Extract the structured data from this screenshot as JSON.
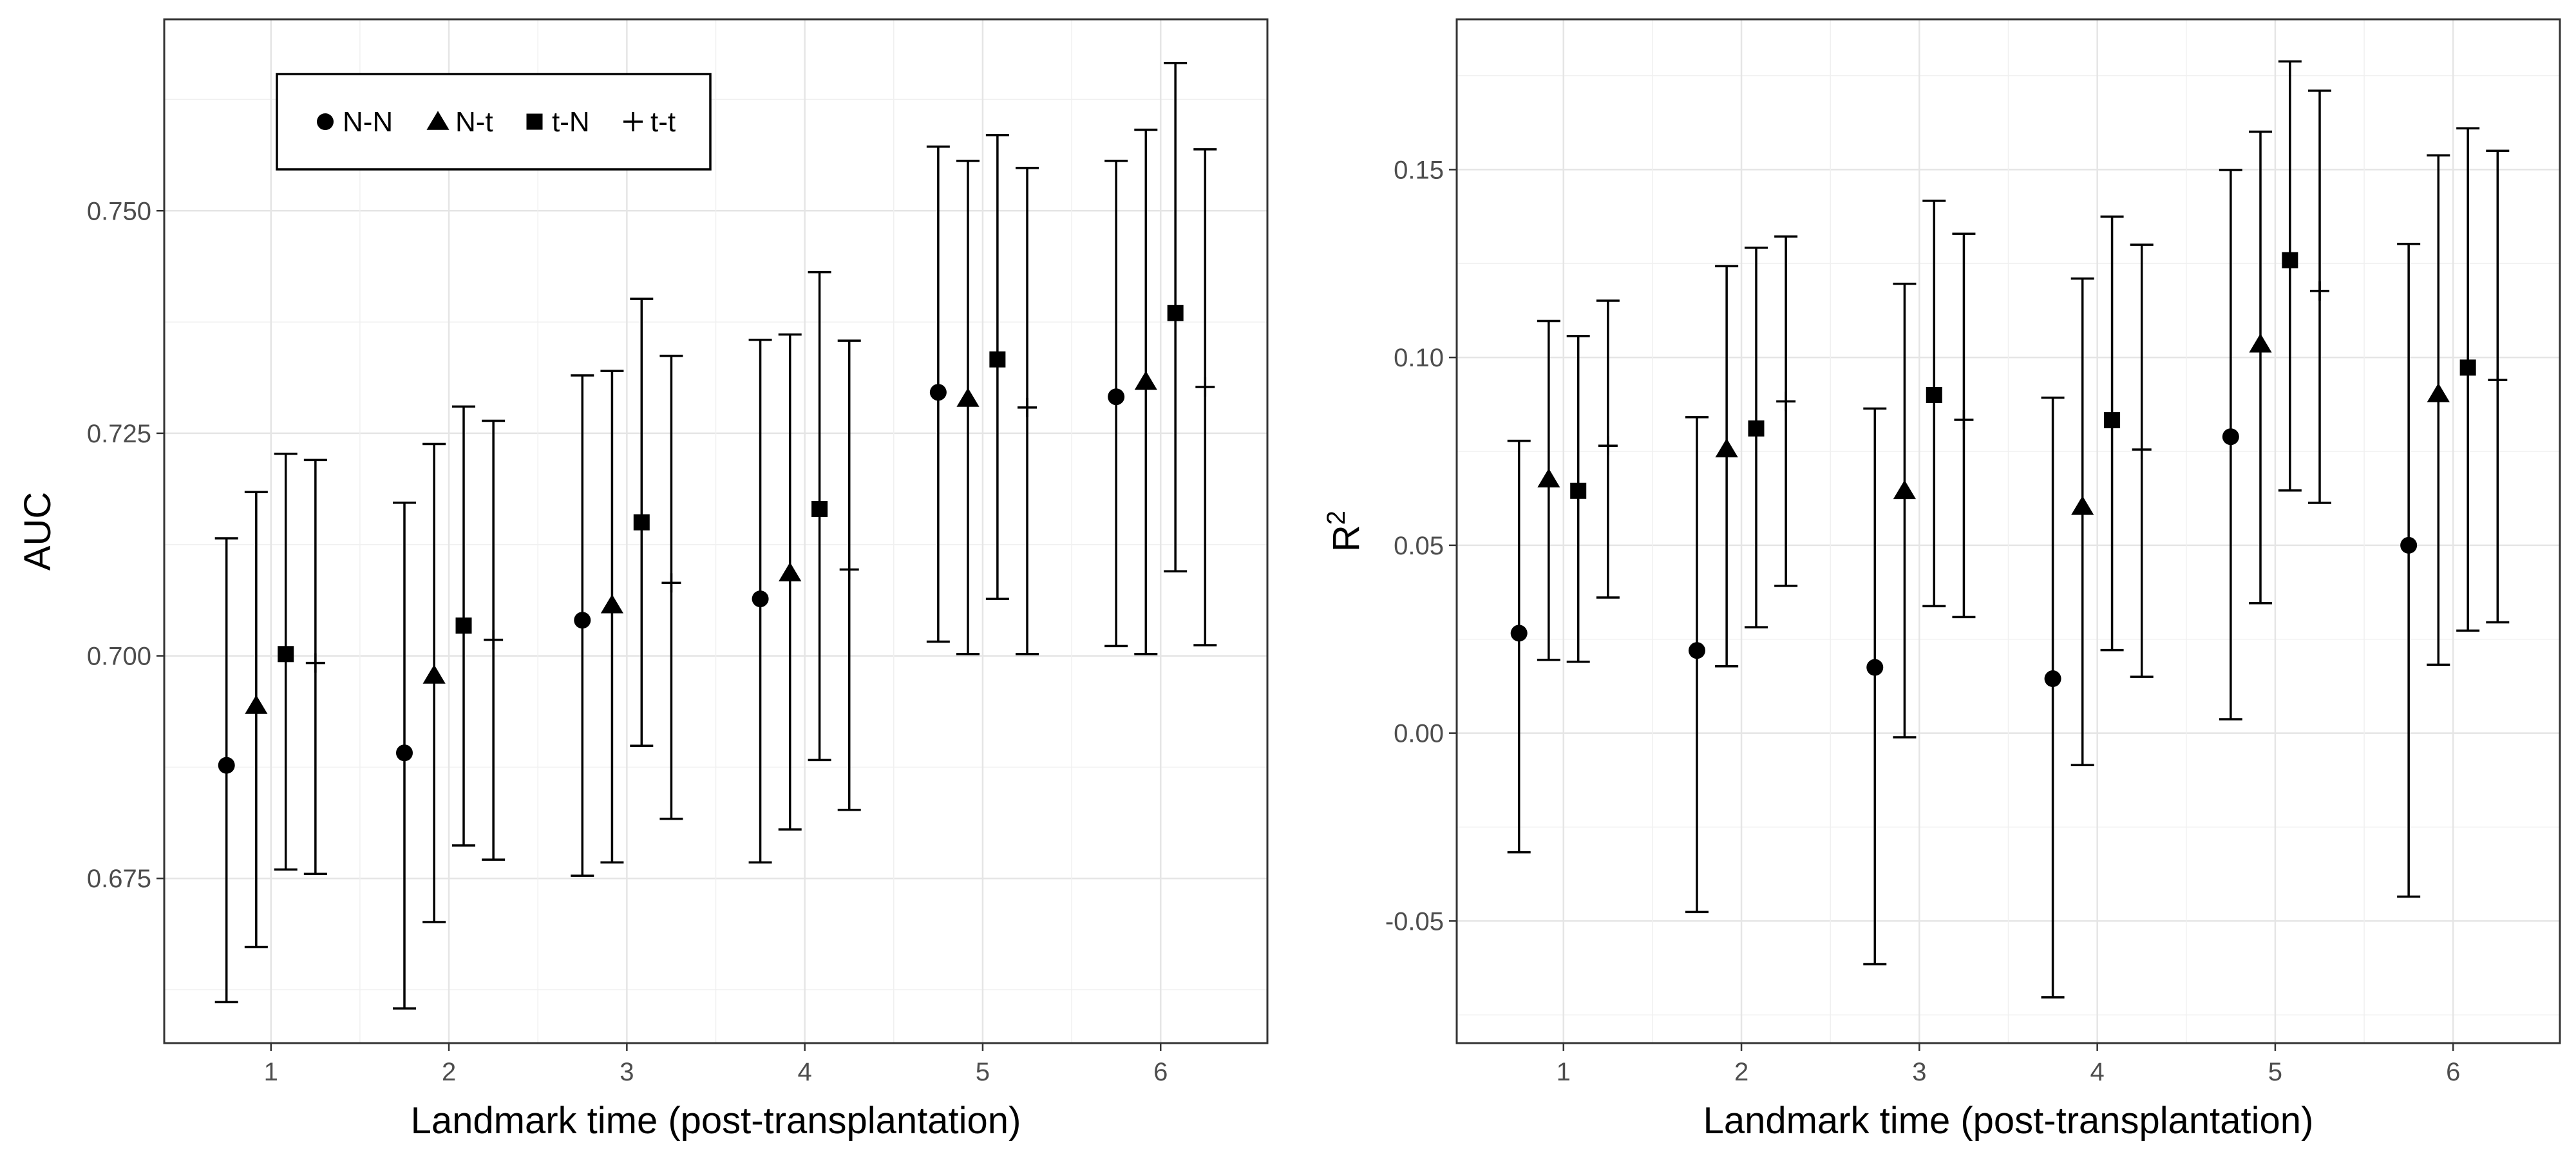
{
  "chart_data": [
    {
      "type": "scatter",
      "xlabel": "Landmark time (post-transplantation)",
      "ylabel": "AUC",
      "ylabel_sup": "",
      "x_ticks": [
        "1",
        "2",
        "3",
        "4",
        "5",
        "6"
      ],
      "y_ticks": [
        "0.675",
        "0.700",
        "0.725",
        "0.750"
      ],
      "ylim": [
        0.6565,
        0.7715
      ],
      "xlim": [
        0.4,
        6.6
      ],
      "grid": true,
      "legend": {
        "position": "top-left",
        "orientation": "horizontal",
        "entries": [
          "N-N",
          "N-t",
          "t-N",
          "t-t"
        ]
      },
      "series": [
        {
          "name": "N-N",
          "marker": "circle",
          "x": [
            1,
            2,
            3,
            4,
            5,
            6
          ],
          "y": [
            0.6877,
            0.6891,
            0.704,
            0.7064,
            0.7296,
            0.7291
          ],
          "lower": [
            0.6611,
            0.6604,
            0.6753,
            0.6768,
            0.7016,
            0.7011
          ],
          "upper": [
            0.7132,
            0.7172,
            0.7315,
            0.7355,
            0.7572,
            0.7556
          ]
        },
        {
          "name": "N-t",
          "marker": "triangle",
          "x": [
            1,
            2,
            3,
            4,
            5,
            6
          ],
          "y": [
            0.6944,
            0.6978,
            0.7057,
            0.7093,
            0.7289,
            0.7308
          ],
          "lower": [
            0.6673,
            0.6701,
            0.6768,
            0.6805,
            0.7002,
            0.7002
          ],
          "upper": [
            0.7184,
            0.7238,
            0.732,
            0.7361,
            0.7556,
            0.7591
          ]
        },
        {
          "name": "t-N",
          "marker": "square",
          "x": [
            1,
            2,
            3,
            4,
            5,
            6
          ],
          "y": [
            0.7002,
            0.7034,
            0.715,
            0.7165,
            0.7333,
            0.7385
          ],
          "lower": [
            0.676,
            0.6787,
            0.6899,
            0.6883,
            0.7064,
            0.7095
          ],
          "upper": [
            0.7227,
            0.728,
            0.7401,
            0.7431,
            0.7585,
            0.7666
          ]
        },
        {
          "name": "t-t",
          "marker": "plus",
          "x": [
            1,
            2,
            3,
            4,
            5,
            6
          ],
          "y": [
            0.6992,
            0.7018,
            0.7082,
            0.7097,
            0.7279,
            0.7302
          ],
          "lower": [
            0.6755,
            0.6771,
            0.6817,
            0.6827,
            0.7002,
            0.7012
          ],
          "upper": [
            0.722,
            0.7264,
            0.7337,
            0.7354,
            0.7548,
            0.7569
          ]
        }
      ]
    },
    {
      "type": "scatter",
      "xlabel": "Landmark time (post-transplantation)",
      "ylabel": "R",
      "ylabel_sup": "2",
      "x_ticks": [
        "1",
        "2",
        "3",
        "4",
        "5",
        "6"
      ],
      "y_ticks": [
        "-0.05",
        "0.00",
        "0.05",
        "0.10",
        "0.15"
      ],
      "ylim": [
        -0.0825,
        0.19
      ],
      "xlim": [
        0.4,
        6.6
      ],
      "grid": true,
      "series": [
        {
          "name": "N-N",
          "marker": "circle",
          "x": [
            1,
            2,
            3,
            4,
            5,
            6
          ],
          "y": [
            0.0266,
            0.022,
            0.0175,
            0.0145,
            0.0789,
            0.05
          ],
          "lower": [
            -0.0317,
            -0.0476,
            -0.0615,
            -0.0703,
            0.0037,
            -0.0435
          ],
          "upper": [
            0.0778,
            0.0841,
            0.0864,
            0.0893,
            0.1499,
            0.1302
          ]
        },
        {
          "name": "N-t",
          "marker": "triangle",
          "x": [
            1,
            2,
            3,
            4,
            5,
            6
          ],
          "y": [
            0.0676,
            0.0756,
            0.0645,
            0.0603,
            0.1035,
            0.0903
          ],
          "lower": [
            0.0195,
            0.0178,
            -0.0011,
            -0.0085,
            0.0346,
            0.0182
          ],
          "upper": [
            0.1097,
            0.1243,
            0.1196,
            0.121,
            0.1601,
            0.1538
          ]
        },
        {
          "name": "t-N",
          "marker": "square",
          "x": [
            1,
            2,
            3,
            4,
            5,
            6
          ],
          "y": [
            0.0645,
            0.0811,
            0.09,
            0.0833,
            0.1259,
            0.0973
          ],
          "lower": [
            0.019,
            0.0282,
            0.0338,
            0.0221,
            0.0646,
            0.0273
          ],
          "upper": [
            0.1057,
            0.1292,
            0.1417,
            0.1375,
            0.1788,
            0.161
          ]
        },
        {
          "name": "t-t",
          "marker": "plus",
          "x": [
            1,
            2,
            3,
            4,
            5,
            6
          ],
          "y": [
            0.0765,
            0.0883,
            0.0834,
            0.0755,
            0.1177,
            0.094
          ],
          "lower": [
            0.0361,
            0.0392,
            0.0309,
            0.015,
            0.0613,
            0.0295
          ],
          "upper": [
            0.1151,
            0.1322,
            0.1329,
            0.13,
            0.171,
            0.155
          ]
        }
      ]
    }
  ]
}
